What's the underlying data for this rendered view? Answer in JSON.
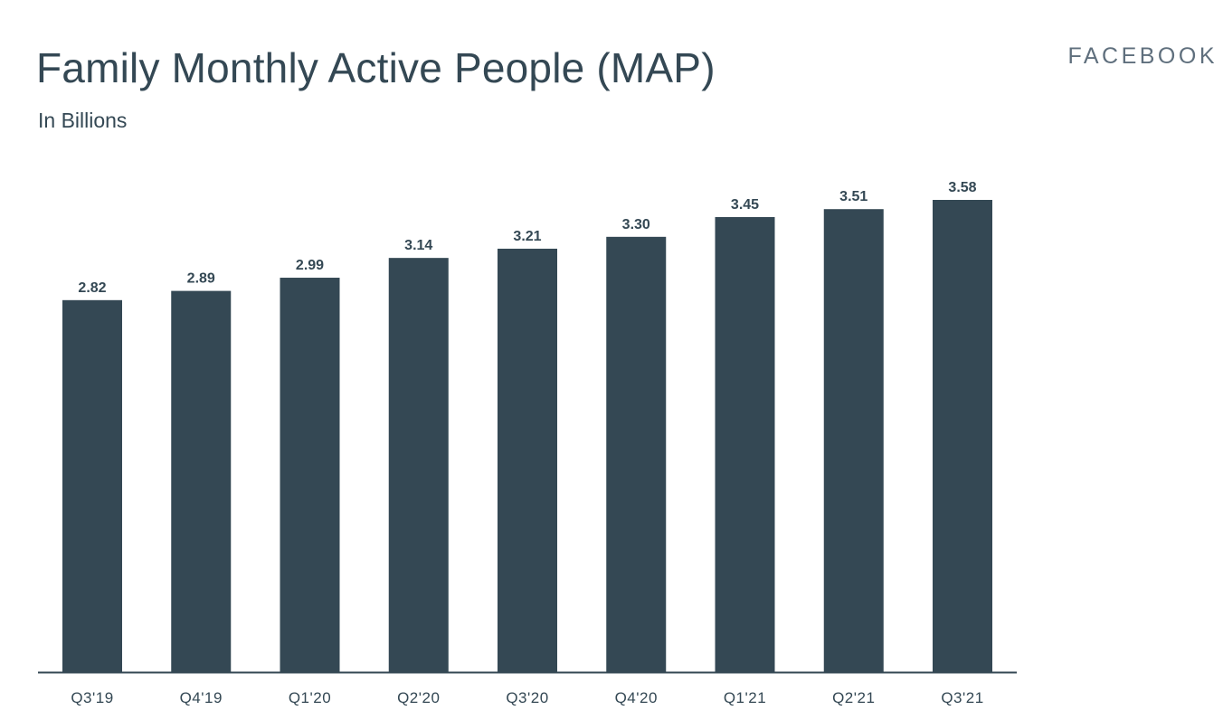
{
  "header": {
    "title": "Family Monthly Active People (MAP)",
    "subtitle": "In Billions",
    "brand": "FACEBOOK"
  },
  "colors": {
    "bar": "#344854",
    "text": "#344854",
    "brand": "#5f6f7d",
    "axis": "#344854"
  },
  "chart_data": {
    "type": "bar",
    "title": "Family Monthly Active People (MAP)",
    "subtitle": "In Billions",
    "xlabel": "",
    "ylabel": "",
    "categories": [
      "Q3'19",
      "Q4'19",
      "Q1'20",
      "Q2'20",
      "Q3'20",
      "Q4'20",
      "Q1'21",
      "Q2'21",
      "Q3'21"
    ],
    "values": [
      2.82,
      2.89,
      2.99,
      3.14,
      3.21,
      3.3,
      3.45,
      3.51,
      3.58
    ],
    "value_labels": [
      "2.82",
      "2.89",
      "2.99",
      "3.14",
      "3.21",
      "3.30",
      "3.45",
      "3.51",
      "3.58"
    ],
    "ylim": [
      0,
      3.58
    ],
    "grid": false,
    "legend": "none",
    "data_labels": true
  }
}
